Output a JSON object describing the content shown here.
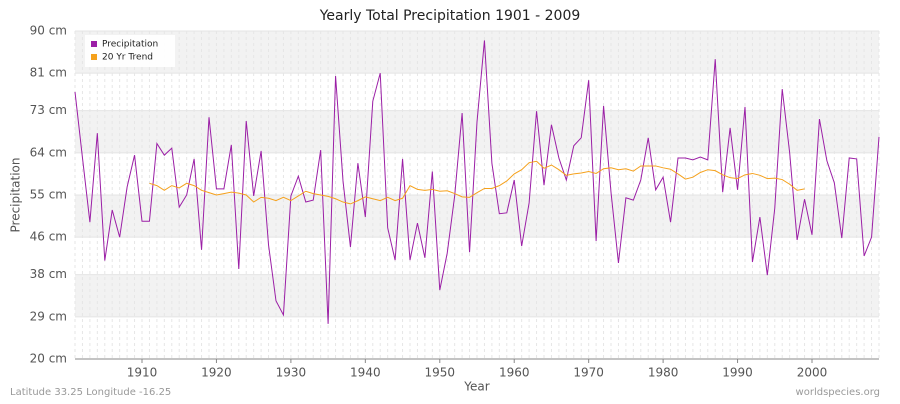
{
  "chart_data": {
    "type": "line",
    "title": "Yearly Total Precipitation 1901 - 2009",
    "x_label": "Year",
    "y_label": "Precipitation",
    "footer_left": "Latitude 33.25 Longitude -16.25",
    "footer_right": "worldspecies.org",
    "x": [
      1901,
      1902,
      1903,
      1904,
      1905,
      1906,
      1907,
      1908,
      1909,
      1910,
      1911,
      1912,
      1913,
      1914,
      1915,
      1916,
      1917,
      1918,
      1919,
      1920,
      1921,
      1922,
      1923,
      1924,
      1925,
      1926,
      1927,
      1928,
      1929,
      1930,
      1931,
      1932,
      1933,
      1934,
      1935,
      1936,
      1937,
      1938,
      1939,
      1940,
      1941,
      1942,
      1943,
      1944,
      1945,
      1946,
      1947,
      1948,
      1949,
      1950,
      1951,
      1952,
      1953,
      1954,
      1955,
      1956,
      1957,
      1958,
      1959,
      1960,
      1961,
      1962,
      1963,
      1964,
      1965,
      1966,
      1967,
      1968,
      1969,
      1970,
      1971,
      1972,
      1973,
      1974,
      1975,
      1976,
      1977,
      1978,
      1979,
      1980,
      1981,
      1982,
      1983,
      1984,
      1985,
      1986,
      1987,
      1988,
      1989,
      1990,
      1991,
      1992,
      1993,
      1994,
      1995,
      1996,
      1997,
      1998,
      1999,
      2000,
      2001,
      2002,
      2003,
      2004,
      2005,
      2006,
      2007,
      2008,
      2009
    ],
    "series": [
      {
        "name": "Precipitation",
        "color": "#9b1fa6",
        "values": [
          77,
          63,
          49.2,
          68.2,
          41,
          51.8,
          46,
          56.7,
          63.5,
          49.4,
          49.4,
          66,
          63.5,
          65,
          52.4,
          55,
          62.7,
          43.3,
          71.6,
          56.3,
          56.3,
          65.7,
          39.2,
          70.8,
          54.8,
          64.4,
          44.3,
          32.4,
          29.4,
          54.8,
          59,
          53.5,
          53.9,
          64.6,
          27.5,
          80.4,
          58,
          43.9,
          61.8,
          50.3,
          75,
          81,
          48,
          41.1,
          62.7,
          41.1,
          49,
          41.6,
          60,
          34.7,
          42.6,
          54.8,
          72.5,
          42.8,
          70.6,
          88,
          61.8,
          51,
          51.2,
          58.2,
          44.1,
          53.3,
          72.9,
          57.1,
          70,
          62.9,
          58.2,
          65.5,
          67.2,
          79.5,
          45.2,
          74,
          55.6,
          40.5,
          54.4,
          53.9,
          58.2,
          67.2,
          56.1,
          58.8,
          49.2,
          62.9,
          62.9,
          62.5,
          63.1,
          62.5,
          84,
          55.6,
          69.3,
          56.1,
          73.8,
          40.7,
          50.3,
          37.9,
          52.2,
          77.6,
          64,
          45.4,
          54.1,
          46.5,
          71.2,
          62.3,
          57.6,
          45.8,
          62.9,
          62.7,
          42,
          46,
          67.4
        ]
      },
      {
        "name": "20 Yr Trend",
        "color": "#f5a11c",
        "values": [
          null,
          null,
          null,
          null,
          null,
          null,
          null,
          null,
          null,
          null,
          57.5,
          57,
          56,
          57,
          56.5,
          57.5,
          57,
          56,
          55.5,
          55,
          55.3,
          55.6,
          55.4,
          55,
          53.5,
          54.5,
          54.3,
          53.8,
          54.5,
          53.8,
          54.8,
          55.8,
          55.3,
          55,
          54.7,
          54.2,
          53.5,
          53.1,
          53.8,
          54.6,
          54.2,
          53.8,
          54.5,
          53.8,
          54.3,
          57,
          56.2,
          56,
          56.2,
          55.8,
          55.9,
          55.3,
          54.6,
          54.5,
          55.5,
          56.4,
          56.4,
          57,
          58,
          59.5,
          60.4,
          61.9,
          62.2,
          60.7,
          61.4,
          60.4,
          59.2,
          59.5,
          59.7,
          60,
          59.6,
          60.6,
          60.8,
          60.4,
          60.6,
          60.1,
          61.2,
          61.2,
          61.2,
          60.8,
          60.5,
          59.5,
          58.4,
          58.8,
          59.8,
          60.4,
          60.2,
          59.3,
          58.7,
          58.5,
          59.3,
          59.6,
          59.2,
          58.5,
          58.6,
          58.3,
          57.3,
          56,
          56.3,
          null,
          null,
          null,
          null,
          null,
          null,
          null,
          null,
          null,
          null
        ]
      }
    ],
    "xlim": [
      1901,
      2009
    ],
    "xticks": [
      1910,
      1920,
      1930,
      1940,
      1950,
      1960,
      1970,
      1980,
      1990,
      2000
    ],
    "ylim": [
      20,
      90
    ],
    "yticks": [
      {
        "value": 20,
        "label": "20 cm"
      },
      {
        "value": 29,
        "label": "29 cm"
      },
      {
        "value": 38,
        "label": "38 cm"
      },
      {
        "value": 46,
        "label": "46 cm"
      },
      {
        "value": 55,
        "label": "55 cm"
      },
      {
        "value": 64,
        "label": "64 cm"
      },
      {
        "value": 73,
        "label": "73 cm"
      },
      {
        "value": 81,
        "label": "81 cm"
      },
      {
        "value": 90,
        "label": "90 cm"
      }
    ],
    "grid": true,
    "legend": "top-left"
  }
}
